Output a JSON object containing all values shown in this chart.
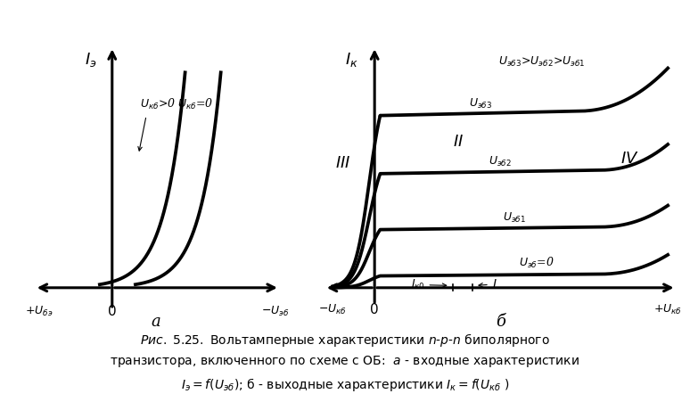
{
  "bg_color": "#ffffff",
  "line_color": "#000000",
  "line_width": 2.2,
  "fig_width": 7.74,
  "fig_height": 4.51,
  "dpi": 100
}
